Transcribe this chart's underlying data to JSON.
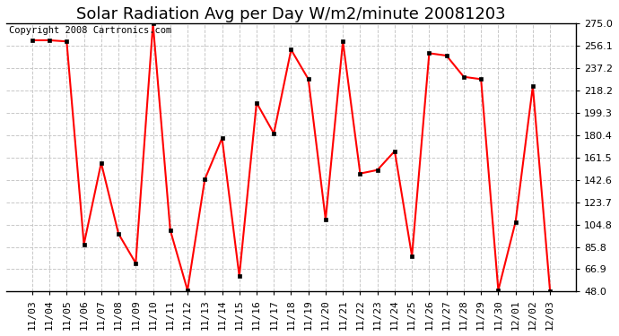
{
  "title": "Solar Radiation Avg per Day W/m2/minute 20081203",
  "copyright_text": "Copyright 2008 Cartronics.com",
  "dates": [
    "11/03",
    "11/04",
    "11/05",
    "11/06",
    "11/07",
    "11/08",
    "11/09",
    "11/10",
    "11/11",
    "11/12",
    "11/13",
    "11/14",
    "11/15",
    "11/16",
    "11/17",
    "11/18",
    "11/19",
    "11/20",
    "11/21",
    "11/22",
    "11/23",
    "11/24",
    "11/25",
    "11/26",
    "11/27",
    "11/28",
    "11/29",
    "11/30",
    "12/01",
    "12/02",
    "12/03"
  ],
  "values": [
    261.0,
    261.0,
    260.0,
    88.0,
    157.0,
    97.0,
    72.0,
    275.0,
    100.0,
    49.0,
    143.0,
    178.0,
    61.0,
    208.0,
    182.0,
    253.0,
    228.0,
    109.0,
    260.0,
    148.0,
    151.0,
    167.0,
    78.0,
    250.0,
    248.0,
    230.0,
    228.0,
    49.0,
    107.0,
    222.0,
    48.0
  ],
  "line_color": "#ff0000",
  "marker_color": "#000000",
  "background_color": "#ffffff",
  "plot_bg_color": "#ffffff",
  "grid_color": "#c8c8c8",
  "ylim": [
    48.0,
    275.0
  ],
  "yticks": [
    275.0,
    256.1,
    237.2,
    218.2,
    199.3,
    180.4,
    161.5,
    142.6,
    123.7,
    104.8,
    85.8,
    66.9,
    48.0
  ],
  "title_fontsize": 13,
  "copyright_fontsize": 7.5,
  "tick_fontsize": 8
}
